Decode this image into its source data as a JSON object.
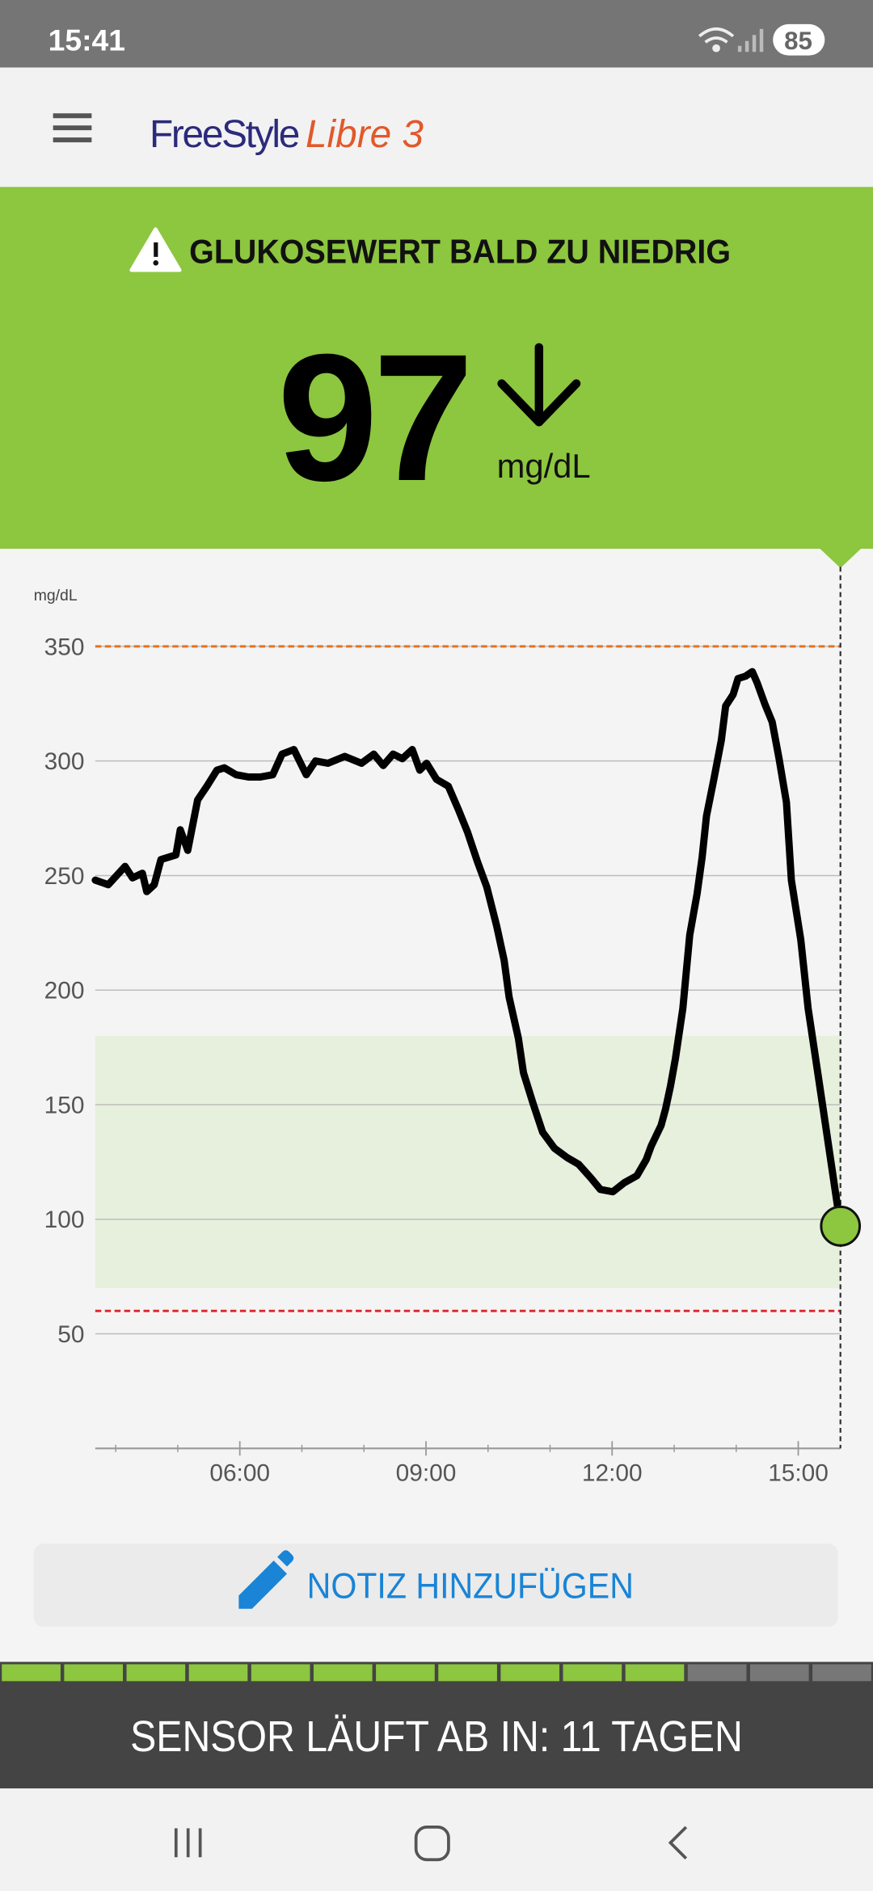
{
  "status_bar": {
    "time": "15:41",
    "battery": "85"
  },
  "app_bar": {
    "brand": "FreeStyle",
    "product": "Libre 3"
  },
  "alert": {
    "message": "GLUKOSEWERT BALD ZU NIEDRIG"
  },
  "reading": {
    "value": 97,
    "unit": "mg/dL"
  },
  "chart_data": {
    "type": "line",
    "y_label": "mg/dL",
    "color": "#000000",
    "x": [
      3.67,
      3.88,
      4.15,
      4.27,
      4.43,
      4.5,
      4.62,
      4.73,
      4.97,
      5.04,
      5.16,
      5.32,
      5.47,
      5.63,
      5.75,
      5.94,
      6.14,
      6.33,
      6.53,
      6.68,
      6.87,
      7.07,
      7.22,
      7.42,
      7.69,
      7.96,
      8.16,
      8.31,
      8.47,
      8.62,
      8.78,
      8.9,
      9.01,
      9.17,
      9.36,
      9.52,
      9.67,
      9.83,
      9.98,
      10.14,
      10.26,
      10.34,
      10.49,
      10.57,
      10.72,
      10.88,
      11.07,
      11.27,
      11.46,
      11.66,
      11.81,
      12.01,
      12.2,
      12.4,
      12.55,
      12.63,
      12.79,
      12.86,
      12.94,
      13.02,
      13.14,
      13.25,
      13.37,
      13.45,
      13.52,
      13.64,
      13.76,
      13.83,
      13.95,
      14.03,
      14.15,
      14.26,
      14.34,
      14.46,
      14.58,
      14.69,
      14.81,
      14.89,
      15.04,
      15.16,
      15.27,
      15.43,
      15.68
    ],
    "values": [
      248,
      246,
      254,
      249,
      251,
      243,
      246,
      257,
      259,
      270,
      261,
      283,
      289,
      296,
      297,
      294,
      293,
      293,
      294,
      303,
      305,
      294,
      300,
      299,
      302,
      299,
      303,
      298,
      303,
      301,
      305,
      296,
      299,
      292,
      289,
      279,
      269,
      256,
      245,
      228,
      213,
      197,
      179,
      164,
      151,
      138,
      131,
      127,
      124,
      118,
      113,
      112,
      116,
      119,
      126,
      132,
      141,
      148,
      158,
      170,
      192,
      224,
      242,
      258,
      276,
      292,
      309,
      324,
      329,
      336,
      337,
      339,
      334,
      325,
      317,
      301,
      282,
      248,
      222,
      192,
      172,
      143,
      97
    ],
    "xlim": [
      3.67,
      15.68
    ],
    "xticks": [
      {
        "value": 6,
        "label": "06:00"
      },
      {
        "value": 9,
        "label": "09:00"
      },
      {
        "value": 12,
        "label": "12:00"
      },
      {
        "value": 15,
        "label": "15:00"
      }
    ],
    "xminorticks": [
      4,
      5,
      7,
      8,
      10,
      11,
      13,
      14
    ],
    "ylim": [
      0,
      385
    ],
    "yticks": [
      50,
      100,
      150,
      200,
      250,
      300,
      350
    ],
    "grid": true,
    "target_range": [
      70,
      180
    ],
    "target_color": "#e6f0dc",
    "high_line": 350,
    "high_color": "#e8721c",
    "low_line": 60,
    "low_color": "#d9262c",
    "marker_color": "#8dc63f"
  },
  "note_button": {
    "label": "NOTIZ HINZUFÜGEN"
  },
  "sensor": {
    "label": "SENSOR LÄUFT AB IN: 11 TAGEN",
    "segments_total": 14,
    "segments_filled": 11
  }
}
